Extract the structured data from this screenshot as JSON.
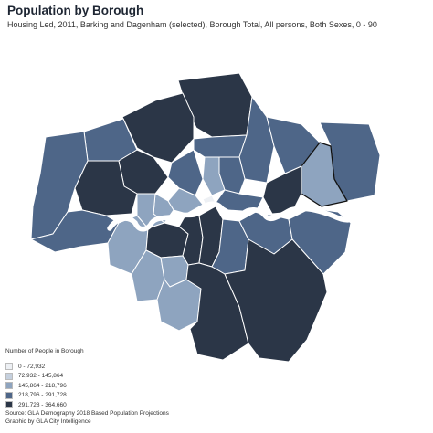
{
  "header": {
    "title": "Population by Borough",
    "subtitle": "Housing Led, 2011, Barking and Dagenham (selected), Borough Total, All persons, Both Sexes, 0 - 90"
  },
  "legend": {
    "title": "Number of People in Borough",
    "items": [
      {
        "label": "0 - 72,932",
        "color": "#edf0f4"
      },
      {
        "label": "72,932 - 145,864",
        "color": "#c5d0de"
      },
      {
        "label": "145,864 - 218,796",
        "color": "#8ea4bf"
      },
      {
        "label": "218,796 - 291,728",
        "color": "#4e6688"
      },
      {
        "label": "291,728 - 364,660",
        "color": "#2b3647"
      }
    ]
  },
  "colors": {
    "river": "#ffffff",
    "border": "#ffffff",
    "selected_outline": "#111111"
  },
  "footer": {
    "source": "Source: GLA Demography 2018 Based Population Projections",
    "credit": "Graphic by GLA City Intelligence"
  }
}
